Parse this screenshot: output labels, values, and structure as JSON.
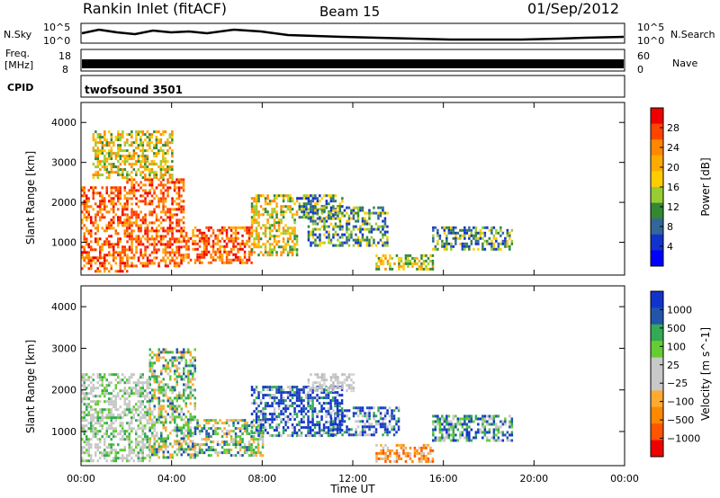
{
  "header": {
    "station": "Rankin Inlet (fitACF)",
    "beam": "Beam 15",
    "date": "01/Sep/2012"
  },
  "strip_labels": {
    "nsky": "N.Sky",
    "nsearch": "N.Search",
    "freq_line1": "Freq.",
    "freq_line2": "[MHz]",
    "nave": "Nave",
    "cpid": "CPID",
    "cpid_value": "twofsound 3501",
    "noise_left_ticks": [
      "10^5",
      "10^0"
    ],
    "noise_right_ticks": [
      "10^5",
      "10^0"
    ],
    "freq_ticks": [
      "18",
      "8"
    ],
    "nave_ticks": [
      "60",
      "0"
    ]
  },
  "chart_data": [
    {
      "type": "heatmap",
      "title": "",
      "xlabel": "Time UT",
      "ylabel": "Slant Range [km]",
      "x_ticks": [
        "00:00",
        "04:00",
        "08:00",
        "12:00",
        "16:00",
        "20:00",
        "00:00"
      ],
      "x_range_hours": [
        0,
        24
      ],
      "y_ticks": [
        "1000",
        "2000",
        "3000",
        "4000"
      ],
      "y_range_km": [
        180,
        4500
      ],
      "colorbar": {
        "label": "Power [dB]",
        "ticks": [
          "28",
          "24",
          "20",
          "16",
          "12",
          "8",
          "4"
        ],
        "colors": [
          "#ee0000",
          "#ff4400",
          "#ff8800",
          "#ffaa00",
          "#ffcc00",
          "#99cc33",
          "#338833",
          "#336699",
          "#1133cc",
          "#0000ff"
        ]
      },
      "regions": [
        {
          "x0": 0.0,
          "x1": 2.0,
          "y0": 300,
          "y1": 2400,
          "level": "high"
        },
        {
          "x0": 2.0,
          "x1": 4.5,
          "y0": 400,
          "y1": 2600,
          "level": "high"
        },
        {
          "x0": 4.5,
          "x1": 7.5,
          "y0": 500,
          "y1": 1400,
          "level": "high"
        },
        {
          "x0": 0.5,
          "x1": 4.0,
          "y0": 2600,
          "y1": 3800,
          "level": "mid"
        },
        {
          "x0": 7.5,
          "x1": 9.5,
          "y0": 700,
          "y1": 2200,
          "level": "mid"
        },
        {
          "x0": 9.5,
          "x1": 11.5,
          "y0": 1600,
          "y1": 2200,
          "level": "low"
        },
        {
          "x0": 10.0,
          "x1": 13.5,
          "y0": 900,
          "y1": 1900,
          "level": "low"
        },
        {
          "x0": 13.0,
          "x1": 15.5,
          "y0": 300,
          "y1": 700,
          "level": "mid"
        },
        {
          "x0": 15.5,
          "x1": 19.0,
          "y0": 800,
          "y1": 1400,
          "level": "low"
        }
      ]
    },
    {
      "type": "heatmap",
      "title": "",
      "xlabel": "Time UT",
      "ylabel": "Slant Range [km]",
      "x_ticks": [
        "00:00",
        "04:00",
        "08:00",
        "12:00",
        "16:00",
        "20:00",
        "00:00"
      ],
      "x_range_hours": [
        0,
        24
      ],
      "y_ticks": [
        "1000",
        "2000",
        "3000",
        "4000"
      ],
      "y_range_km": [
        180,
        4500
      ],
      "colorbar": {
        "label": "Velocity [m s^-1]",
        "ticks": [
          "1000",
          "500",
          "100",
          "25",
          "−25",
          "−100",
          "−500",
          "−1000"
        ],
        "colors": [
          "#1133cc",
          "#2255aa",
          "#33aa55",
          "#66cc33",
          "#c8c8c8",
          "#c8c8c8",
          "#ffaa33",
          "#ff8800",
          "#ff5500",
          "#ee0000"
        ]
      },
      "regions": [
        {
          "x0": 0.0,
          "x1": 3.0,
          "y0": 300,
          "y1": 2400,
          "level": "gray-green"
        },
        {
          "x0": 3.0,
          "x1": 5.0,
          "y0": 400,
          "y1": 3000,
          "level": "green"
        },
        {
          "x0": 5.0,
          "x1": 8.0,
          "y0": 400,
          "y1": 1300,
          "level": "green"
        },
        {
          "x0": 7.5,
          "x1": 11.5,
          "y0": 900,
          "y1": 2100,
          "level": "blue"
        },
        {
          "x0": 11.0,
          "x1": 14.0,
          "y0": 900,
          "y1": 1600,
          "level": "blue"
        },
        {
          "x0": 13.0,
          "x1": 15.5,
          "y0": 300,
          "y1": 700,
          "level": "orange"
        },
        {
          "x0": 15.5,
          "x1": 19.0,
          "y0": 800,
          "y1": 1400,
          "level": "green-blue"
        },
        {
          "x0": 10.0,
          "x1": 12.0,
          "y0": 2000,
          "y1": 2400,
          "level": "gray"
        }
      ]
    }
  ]
}
